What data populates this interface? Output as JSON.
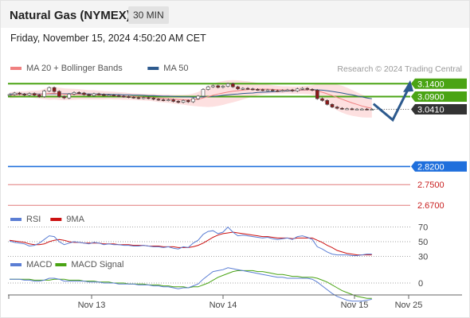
{
  "header": {
    "title": "Natural Gas (NYMEX)",
    "interval": "30 MIN",
    "datetime": "Friday, November 15, 2024 4:50:20 AM CET"
  },
  "colors": {
    "price_line": "#555555",
    "bollinger_fill": "#fde0e0",
    "ma20": "#f08080",
    "ma50": "#2d5a8e",
    "resistance": "#4aa414",
    "support": "#e07a7a",
    "pivot": "#1f6fdc",
    "last_price_tag": "#333333",
    "rsi": "#5b7ed4",
    "rsi_ma": "#cc1111",
    "macd": "#5b7ed4",
    "macd_signal": "#4aa414",
    "forecast_arrow": "#2d5a8e"
  },
  "chart_data": [
    {
      "type": "line",
      "name": "price",
      "legend": [
        {
          "label": "MA 20 + Bollinger Bands",
          "color": "#f08080"
        },
        {
          "label": "MA 50",
          "color": "#2d5a8e"
        }
      ],
      "credit": "Research © 2024 Trading Central",
      "ylim": [
        2.64,
        3.19
      ],
      "x_ticks": [
        "Nov 13",
        "Nov 14",
        "Nov 15",
        "Nov 25"
      ],
      "price": [
        3.098,
        3.104,
        3.1,
        3.096,
        3.102,
        3.096,
        3.09,
        3.112,
        3.125,
        3.11,
        3.09,
        3.085,
        3.1,
        3.106,
        3.104,
        3.098,
        3.094,
        3.101,
        3.098,
        3.094,
        3.096,
        3.094,
        3.092,
        3.09,
        3.088,
        3.086,
        3.084,
        3.086,
        3.084,
        3.08,
        3.078,
        3.076,
        3.078,
        3.072,
        3.068,
        3.075,
        3.07,
        3.082,
        3.092,
        3.118,
        3.128,
        3.132,
        3.126,
        3.13,
        3.14,
        3.128,
        3.12,
        3.122,
        3.12,
        3.118,
        3.117,
        3.115,
        3.116,
        3.113,
        3.112,
        3.114,
        3.116,
        3.112,
        3.12,
        3.122,
        3.118,
        3.115,
        3.082,
        3.075,
        3.06,
        3.05,
        3.045,
        3.043,
        3.043,
        3.042,
        3.042,
        3.042,
        3.041,
        3.041
      ],
      "ma20": [
        3.095,
        3.097,
        3.098,
        3.098,
        3.099,
        3.099,
        3.098,
        3.1,
        3.102,
        3.103,
        3.101,
        3.099,
        3.099,
        3.099,
        3.099,
        3.098,
        3.097,
        3.097,
        3.096,
        3.095,
        3.095,
        3.094,
        3.093,
        3.092,
        3.091,
        3.09,
        3.089,
        3.088,
        3.087,
        3.086,
        3.084,
        3.083,
        3.082,
        3.08,
        3.079,
        3.078,
        3.077,
        3.078,
        3.08,
        3.085,
        3.09,
        3.095,
        3.1,
        3.104,
        3.108,
        3.111,
        3.113,
        3.115,
        3.117,
        3.118,
        3.119,
        3.119,
        3.119,
        3.118,
        3.117,
        3.116,
        3.116,
        3.115,
        3.115,
        3.116,
        3.116,
        3.116,
        3.112,
        3.107,
        3.101,
        3.094,
        3.087,
        3.08,
        3.073,
        3.066,
        3.06,
        3.054,
        3.049,
        3.045
      ],
      "ma50": [
        3.1,
        3.1,
        3.1,
        3.1,
        3.1,
        3.1,
        3.1,
        3.1,
        3.101,
        3.101,
        3.101,
        3.101,
        3.101,
        3.101,
        3.101,
        3.101,
        3.1,
        3.1,
        3.1,
        3.099,
        3.099,
        3.098,
        3.098,
        3.097,
        3.097,
        3.096,
        3.096,
        3.095,
        3.094,
        3.094,
        3.093,
        3.092,
        3.092,
        3.091,
        3.09,
        3.089,
        3.089,
        3.088,
        3.088,
        3.089,
        3.09,
        3.091,
        3.093,
        3.095,
        3.097,
        3.099,
        3.1,
        3.102,
        3.103,
        3.104,
        3.106,
        3.107,
        3.108,
        3.109,
        3.11,
        3.111,
        3.112,
        3.113,
        3.114,
        3.115,
        3.116,
        3.117,
        3.116,
        3.115,
        3.113,
        3.11,
        3.107,
        3.104,
        3.1,
        3.097,
        3.093,
        3.089,
        3.085,
        3.082
      ],
      "bb_width": [
        0.012,
        0.012,
        0.012,
        0.012,
        0.013,
        0.014,
        0.016,
        0.02,
        0.024,
        0.024,
        0.024,
        0.023,
        0.022,
        0.021,
        0.02,
        0.019,
        0.018,
        0.018,
        0.017,
        0.016,
        0.015,
        0.015,
        0.014,
        0.014,
        0.013,
        0.013,
        0.013,
        0.013,
        0.013,
        0.014,
        0.015,
        0.015,
        0.016,
        0.017,
        0.018,
        0.019,
        0.021,
        0.024,
        0.028,
        0.034,
        0.04,
        0.044,
        0.046,
        0.046,
        0.045,
        0.043,
        0.04,
        0.036,
        0.032,
        0.028,
        0.024,
        0.02,
        0.018,
        0.016,
        0.015,
        0.014,
        0.014,
        0.014,
        0.014,
        0.015,
        0.016,
        0.018,
        0.026,
        0.034,
        0.04,
        0.046,
        0.05,
        0.052,
        0.052,
        0.05,
        0.047,
        0.044,
        0.04,
        0.036
      ],
      "levels": [
        {
          "label": "3.1400",
          "value": 3.14,
          "kind": "resistance"
        },
        {
          "label": "3.0900",
          "value": 3.09,
          "kind": "resistance"
        },
        {
          "label": "3.0410",
          "value": 3.041,
          "kind": "last"
        },
        {
          "label": "2.8200",
          "value": 2.82,
          "kind": "pivot"
        },
        {
          "label": "2.7500",
          "value": 2.75,
          "kind": "support"
        },
        {
          "label": "2.6700",
          "value": 2.67,
          "kind": "support"
        }
      ],
      "forecast": [
        [
          3.04,
          3.062
        ],
        [
          3.04,
          3.0
        ],
        [
          3.14,
          3.135
        ]
      ]
    },
    {
      "type": "line",
      "name": "rsi",
      "legend": [
        {
          "label": "RSI",
          "color": "#5b7ed4"
        },
        {
          "label": "9MA",
          "color": "#cc1111"
        }
      ],
      "ylim": [
        25,
        75
      ],
      "ticks": [
        {
          "label": "70",
          "value": 70
        },
        {
          "label": "50",
          "value": 50
        },
        {
          "label": "30",
          "value": 30
        }
      ],
      "rsi": [
        51,
        49,
        48,
        47,
        44,
        45,
        48,
        53,
        58,
        57,
        50,
        46,
        48,
        50,
        49,
        48,
        47,
        49,
        48,
        46,
        47,
        46,
        46,
        45,
        45,
        44,
        44,
        45,
        44,
        43,
        43,
        42,
        43,
        41,
        40,
        43,
        42,
        48,
        52,
        60,
        64,
        65,
        61,
        63,
        70,
        63,
        58,
        59,
        58,
        57,
        56,
        55,
        56,
        54,
        53,
        54,
        55,
        53,
        57,
        58,
        56,
        53,
        43,
        40,
        36,
        33,
        32,
        32,
        32,
        31,
        31,
        32,
        33,
        33
      ],
      "rsi_ma": [
        52,
        51,
        50,
        49,
        47,
        46,
        46,
        47,
        50,
        52,
        53,
        52,
        50,
        49,
        49,
        48,
        48,
        48,
        48,
        47,
        47,
        47,
        46,
        46,
        46,
        45,
        45,
        45,
        44,
        44,
        44,
        43,
        43,
        43,
        42,
        42,
        42,
        43,
        45,
        48,
        52,
        56,
        59,
        61,
        62,
        63,
        62,
        61,
        60,
        59,
        58,
        57,
        57,
        56,
        55,
        55,
        55,
        54,
        55,
        55,
        55,
        55,
        52,
        49,
        45,
        42,
        38,
        36,
        34,
        33,
        32,
        32,
        32,
        32
      ]
    },
    {
      "type": "line",
      "name": "macd",
      "legend": [
        {
          "label": "MACD",
          "color": "#5b7ed4"
        },
        {
          "label": "MACD Signal",
          "color": "#4aa414"
        }
      ],
      "ylim": [
        -0.03,
        0.03
      ],
      "ticks": [
        {
          "label": "0",
          "value": 0
        }
      ],
      "macd": [
        0.004,
        0.004,
        0.004,
        0.003,
        0.003,
        0.002,
        0.002,
        0.003,
        0.005,
        0.005,
        0.004,
        0.002,
        0.002,
        0.002,
        0.002,
        0.002,
        0.001,
        0.001,
        0.001,
        0.0,
        0.0,
        0.0,
        -0.001,
        -0.001,
        -0.001,
        -0.001,
        -0.002,
        -0.002,
        -0.002,
        -0.003,
        -0.003,
        -0.004,
        -0.004,
        -0.005,
        -0.006,
        -0.005,
        -0.005,
        -0.003,
        -0.001,
        0.004,
        0.008,
        0.012,
        0.013,
        0.014,
        0.016,
        0.015,
        0.014,
        0.013,
        0.012,
        0.011,
        0.01,
        0.009,
        0.008,
        0.007,
        0.006,
        0.006,
        0.005,
        0.005,
        0.005,
        0.005,
        0.005,
        0.004,
        0.001,
        -0.003,
        -0.007,
        -0.011,
        -0.014,
        -0.016,
        -0.018,
        -0.019,
        -0.019,
        -0.019,
        -0.018,
        -0.017
      ],
      "signal": [
        0.004,
        0.004,
        0.004,
        0.004,
        0.004,
        0.003,
        0.003,
        0.003,
        0.003,
        0.004,
        0.004,
        0.004,
        0.003,
        0.003,
        0.003,
        0.002,
        0.002,
        0.002,
        0.001,
        0.001,
        0.001,
        0.0,
        0.0,
        0.0,
        -0.001,
        -0.001,
        -0.001,
        -0.001,
        -0.002,
        -0.002,
        -0.002,
        -0.003,
        -0.003,
        -0.004,
        -0.004,
        -0.004,
        -0.005,
        -0.004,
        -0.004,
        -0.002,
        0.0,
        0.003,
        0.006,
        0.008,
        0.01,
        0.012,
        0.013,
        0.013,
        0.013,
        0.013,
        0.012,
        0.012,
        0.011,
        0.01,
        0.009,
        0.009,
        0.008,
        0.007,
        0.007,
        0.006,
        0.006,
        0.006,
        0.005,
        0.003,
        0.001,
        -0.002,
        -0.005,
        -0.008,
        -0.01,
        -0.012,
        -0.014,
        -0.015,
        -0.016,
        -0.016
      ]
    }
  ]
}
